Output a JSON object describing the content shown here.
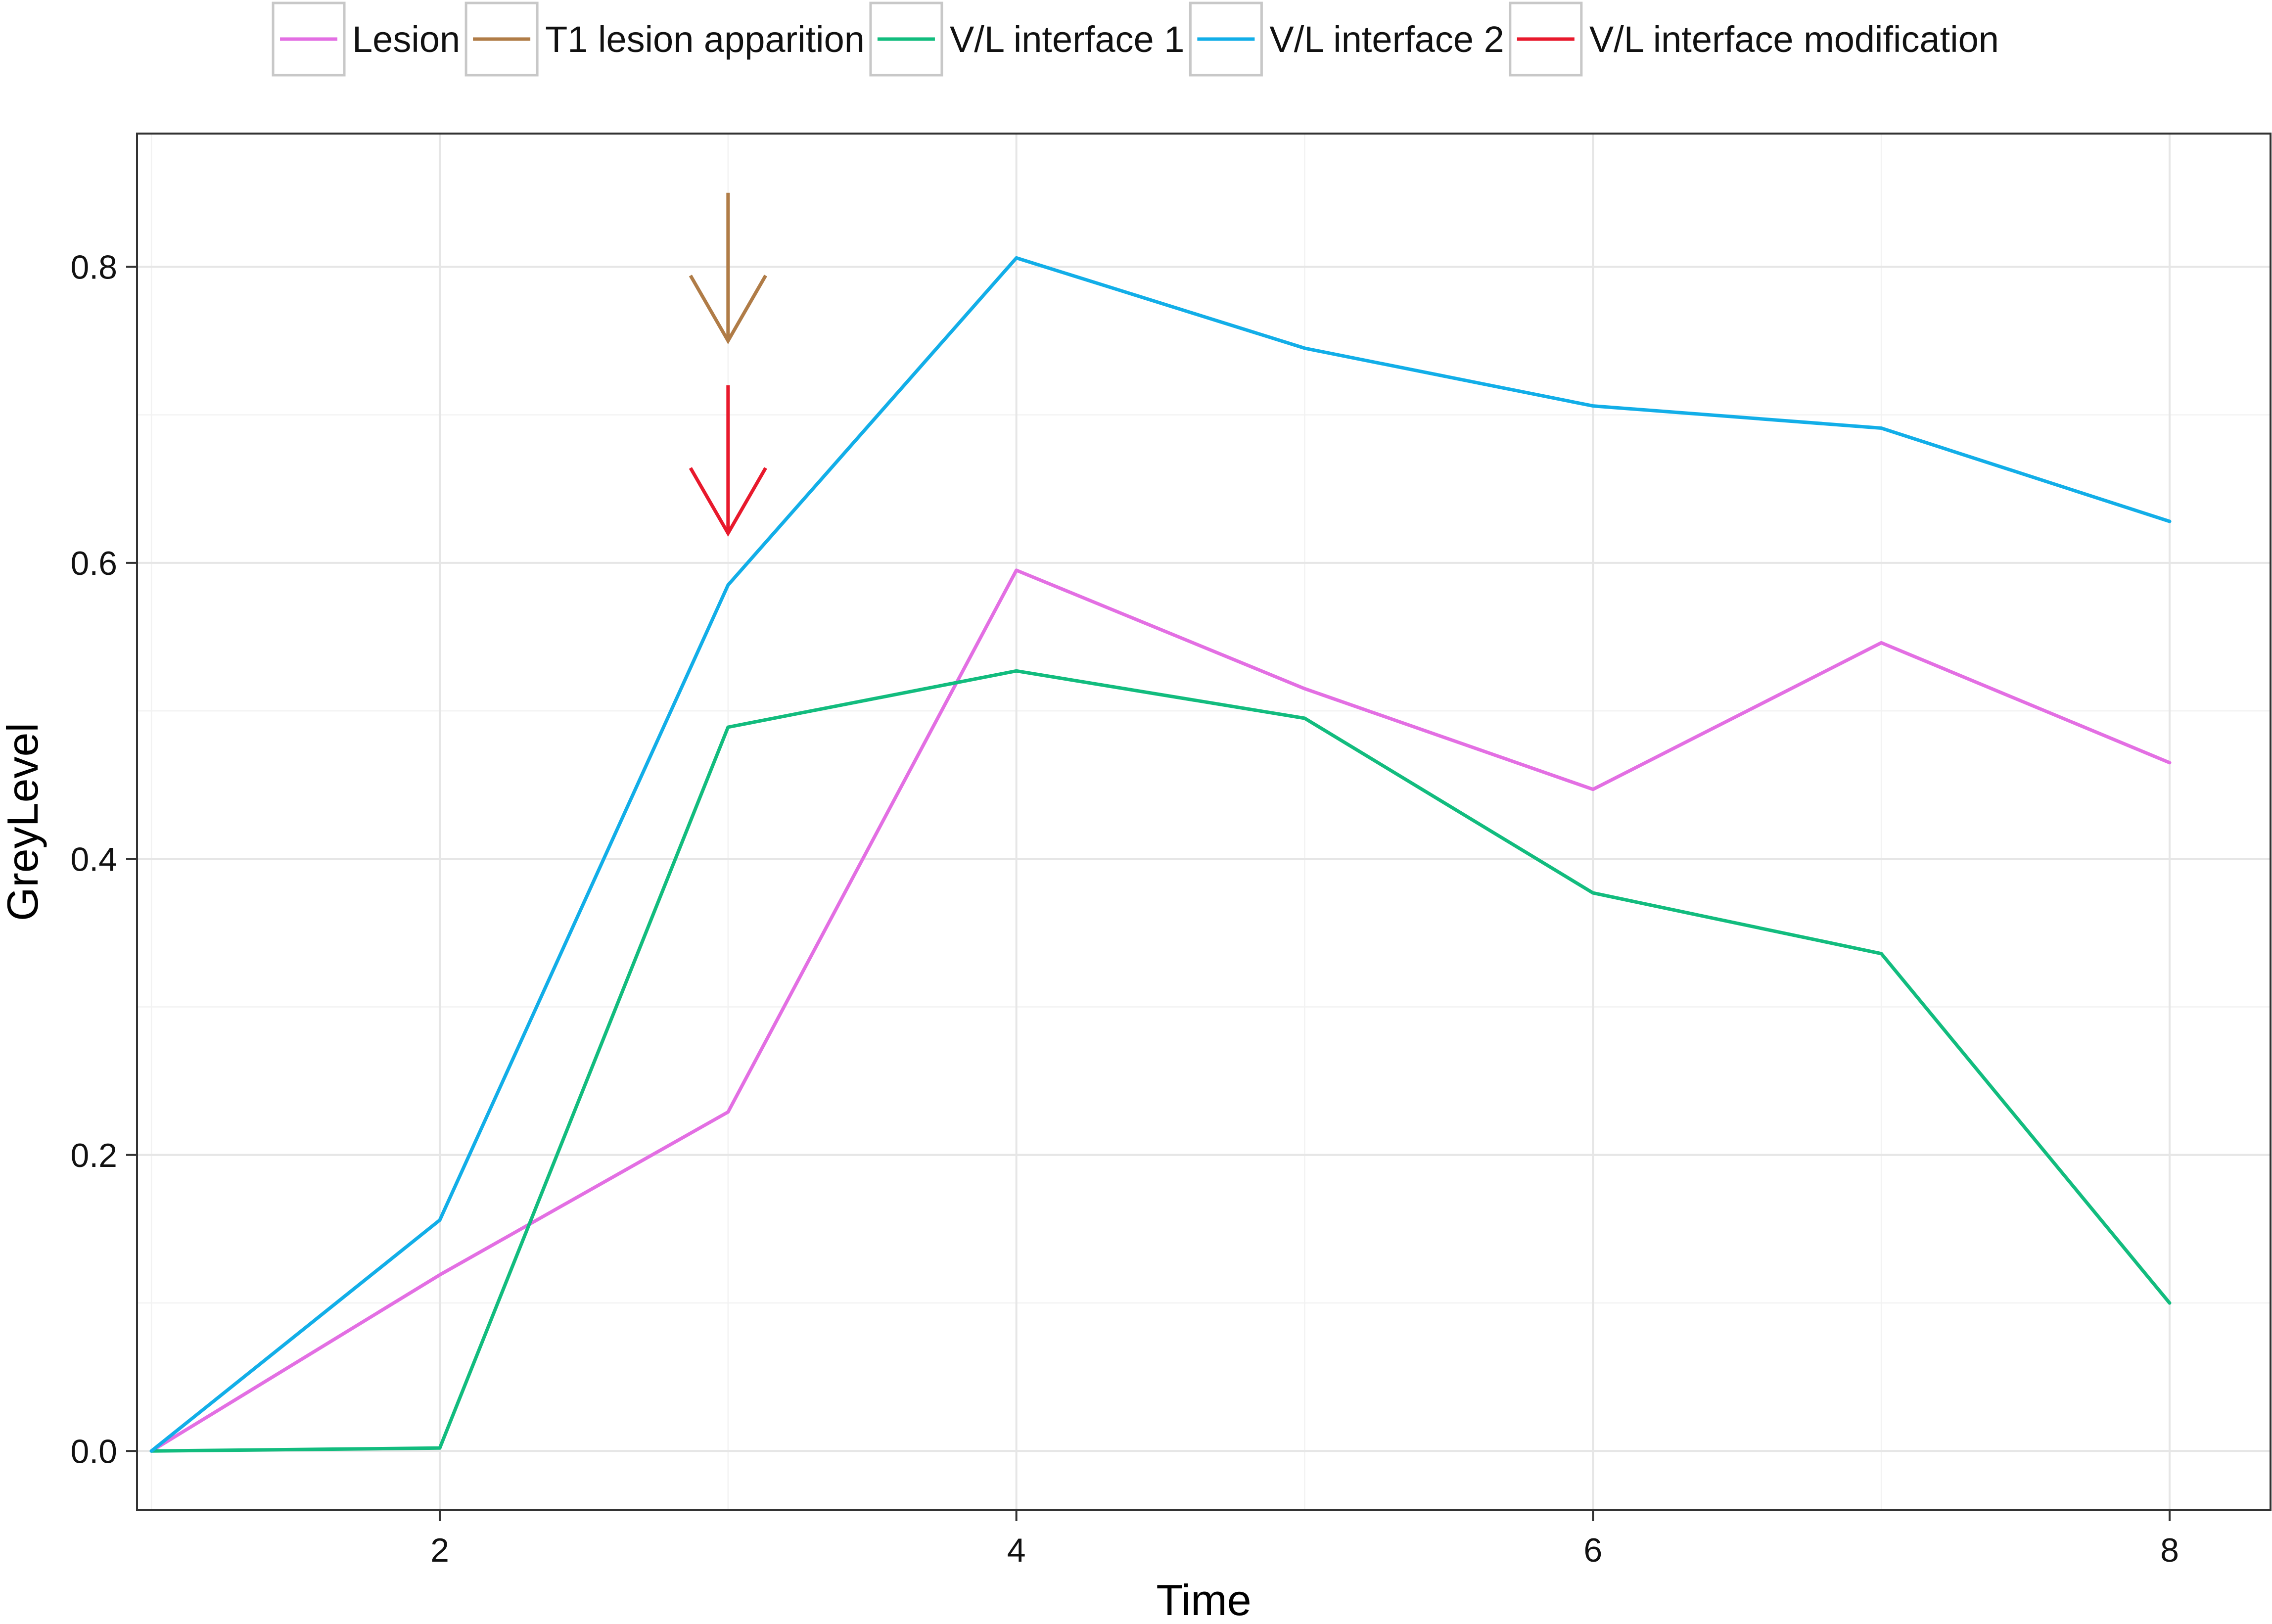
{
  "chart_data": {
    "type": "line",
    "title": "",
    "xlabel": "Time",
    "ylabel": "GreyLevel",
    "xlim": [
      0.95,
      8.35
    ],
    "ylim": [
      -0.04,
      0.89
    ],
    "x_ticks": [
      2,
      4,
      6,
      8
    ],
    "x_tick_labels": [
      "2",
      "4",
      "6",
      "8"
    ],
    "y_ticks": [
      0.0,
      0.2,
      0.4,
      0.6,
      0.8
    ],
    "y_tick_labels": [
      "0.0",
      "0.2",
      "0.4",
      "0.6",
      "0.8"
    ],
    "grid": true,
    "legend_position": "top",
    "x": [
      1,
      2,
      3,
      4,
      5,
      6,
      7,
      8
    ],
    "series": [
      {
        "name": "Lesion",
        "color": "#e36fe3",
        "values": [
          0.0,
          0.119,
          0.229,
          0.595,
          0.515,
          0.447,
          0.546,
          0.465
        ]
      },
      {
        "name": "V/L interface 1",
        "color": "#12bc7e",
        "values": [
          0.0,
          0.002,
          0.489,
          0.527,
          0.495,
          0.377,
          0.336,
          0.1
        ]
      },
      {
        "name": "V/L interface 2",
        "color": "#12aee8",
        "values": [
          0.0,
          0.156,
          0.585,
          0.806,
          0.745,
          0.706,
          0.691,
          0.628
        ]
      }
    ],
    "annotations": [
      {
        "name": "T1 lesion apparition",
        "type": "arrow",
        "color": "#b07c47",
        "x": 3,
        "y_from": 0.85,
        "y_to": 0.75
      },
      {
        "name": "V/L interface modification",
        "type": "arrow",
        "color": "#e8192c",
        "x": 3,
        "y_from": 0.72,
        "y_to": 0.62
      }
    ],
    "legend": [
      {
        "label": "Lesion",
        "color": "#e36fe3"
      },
      {
        "label": "T1 lesion apparition",
        "color": "#b07c47"
      },
      {
        "label": "V/L interface 1",
        "color": "#12bc7e"
      },
      {
        "label": "V/L interface 2",
        "color": "#12aee8"
      },
      {
        "label": "V/L interface modification",
        "color": "#e8192c"
      }
    ]
  }
}
